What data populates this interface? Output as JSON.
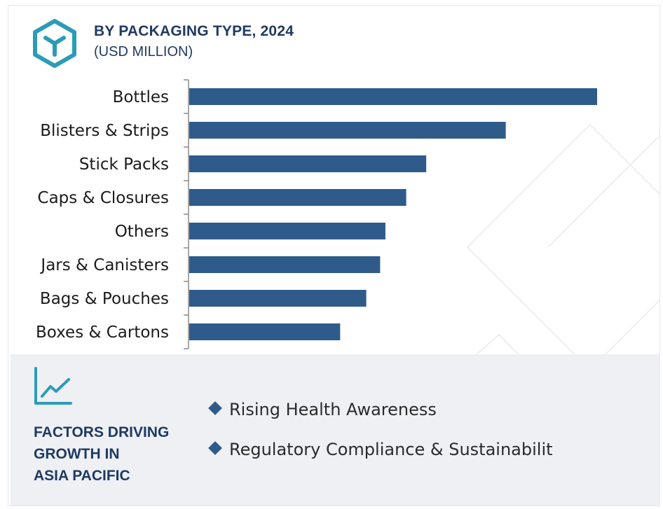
{
  "header": {
    "title": "BY PACKAGING TYPE, 2024",
    "subtitle": "(USD MILLION)",
    "logo_icon": "hexagon-box-icon"
  },
  "chart_data": {
    "type": "bar",
    "orientation": "horizontal",
    "title": "BY PACKAGING TYPE, 2024",
    "subtitle": "(USD MILLION)",
    "categories": [
      "Bottles",
      "Blisters & Strips",
      "Stick Packs",
      "Caps & Closures",
      "Others",
      "Jars & Canisters",
      "Bags & Pouches",
      "Boxes & Cartons"
    ],
    "values": [
      100,
      77.6,
      58.1,
      53.2,
      48.1,
      46.8,
      43.4,
      37.0
    ],
    "xlim": [
      0,
      100
    ],
    "grid": false,
    "bar_color": "#2f5b8b"
  },
  "factors": {
    "icon": "trend-line-icon",
    "title_lines": [
      "FACTORS DRIVING",
      "GROWTH IN",
      "ASIA PACIFIC"
    ],
    "items": [
      "Rising Health Awareness",
      "Regulatory Compliance & Sustainabilit"
    ]
  },
  "colors": {
    "bar": "#2f5b8b",
    "title": "#1f3a63",
    "accent_teal": "#2b9cb8",
    "panel_bg": "#eef0f4"
  }
}
